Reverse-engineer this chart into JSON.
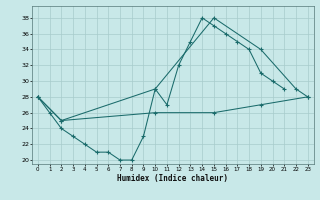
{
  "xlabel": "Humidex (Indice chaleur)",
  "background_color": "#c8e8e8",
  "grid_color": "#a8cccc",
  "line_color": "#1a6b6b",
  "xlim": [
    -0.5,
    23.5
  ],
  "ylim": [
    19.5,
    39.5
  ],
  "xticks": [
    0,
    1,
    2,
    3,
    4,
    5,
    6,
    7,
    8,
    9,
    10,
    11,
    12,
    13,
    14,
    15,
    16,
    17,
    18,
    19,
    20,
    21,
    22,
    23
  ],
  "yticks": [
    20,
    22,
    24,
    26,
    28,
    30,
    32,
    34,
    36,
    38
  ],
  "line1_x": [
    0,
    1,
    2,
    3,
    4,
    5,
    6,
    7,
    8,
    9,
    10,
    11,
    12,
    13,
    14,
    15,
    16,
    17,
    18,
    19,
    20,
    21
  ],
  "line1_y": [
    28,
    26,
    24,
    23,
    22,
    21,
    21,
    20,
    20,
    23,
    29,
    27,
    32,
    35,
    38,
    37,
    36,
    35,
    34,
    31,
    30,
    29
  ],
  "line2_x": [
    0,
    2,
    10,
    15,
    19,
    22,
    23
  ],
  "line2_y": [
    28,
    25,
    29,
    38,
    34,
    29,
    28
  ],
  "line3_x": [
    0,
    2,
    10,
    15,
    19,
    23
  ],
  "line3_y": [
    28,
    25,
    26,
    26,
    27,
    28
  ]
}
